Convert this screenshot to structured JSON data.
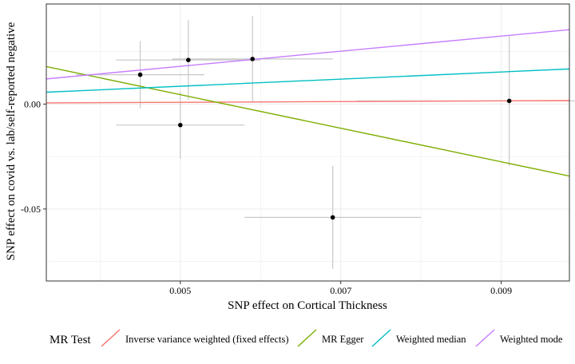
{
  "chart_data": {
    "type": "scatter",
    "title": "",
    "xlabel": "SNP effect on Cortical Thickness",
    "ylabel": "SNP effect on covid vs. lab/self-reported negative",
    "xlim": [
      0.00333,
      0.00985
    ],
    "ylim": [
      -0.0843,
      0.0477
    ],
    "x_ticks": [
      0.005,
      0.007,
      0.009
    ],
    "x_tick_labels": [
      "0.005",
      "0.007",
      "0.009"
    ],
    "y_ticks": [
      0.0,
      -0.05
    ],
    "y_tick_labels": [
      "0.00",
      "-0.05"
    ],
    "grid": true,
    "legend_position": "bottom",
    "points": [
      {
        "x": 0.0045,
        "y": 0.014,
        "x_err": 0.0008,
        "y_err": 0.016
      },
      {
        "x": 0.0051,
        "y": 0.021,
        "x_err": 0.0009,
        "y_err": 0.019
      },
      {
        "x": 0.0059,
        "y": 0.0215,
        "x_err": 0.001,
        "y_err": 0.0205
      },
      {
        "x": 0.005,
        "y": -0.01,
        "x_err": 0.0008,
        "y_err": 0.016
      },
      {
        "x": 0.0069,
        "y": -0.054,
        "x_err": 0.0011,
        "y_err": 0.0245
      },
      {
        "x": 0.0091,
        "y": 0.0015,
        "x_err": 0.0019,
        "y_err": 0.031
      }
    ],
    "legend_title": "MR Test",
    "series": [
      {
        "name": "Inverse variance weighted (fixed effects)",
        "type": "line",
        "slope": 0.17,
        "intercept": 0.0,
        "color": "#F8766D"
      },
      {
        "name": "MR Egger",
        "type": "line",
        "slope": -8.0,
        "intercept": 0.0445,
        "color": "#7CAE00"
      },
      {
        "name": "Weighted median",
        "type": "line",
        "slope": 1.7,
        "intercept": 0.0,
        "color": "#00BFC4"
      },
      {
        "name": "Weighted mode",
        "type": "line",
        "slope": 3.6,
        "intercept": 0.0,
        "color": "#C77CFF"
      }
    ]
  }
}
